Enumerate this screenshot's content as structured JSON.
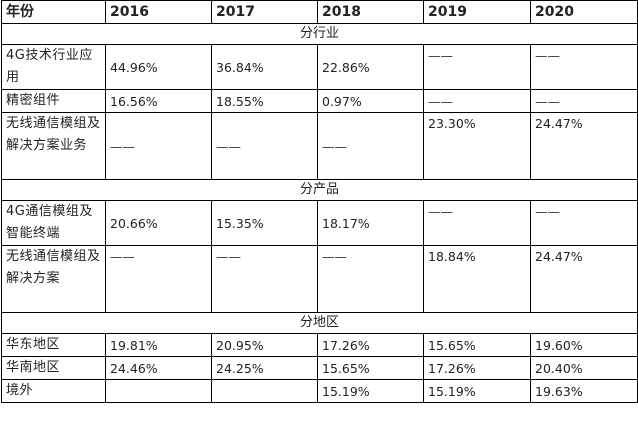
{
  "header": [
    "年份",
    "2016",
    "2017",
    "2018",
    "2019",
    "2020"
  ],
  "sections": [
    {
      "title": "分行业",
      "rows": [
        {
          "label": "4G技术行业应用",
          "values": [
            "44.96%",
            "36.84%",
            "22.86%",
            "——",
            "——"
          ]
        },
        {
          "label": "精密组件",
          "values": [
            "16.56%",
            "18.55%",
            "0.97%",
            "——",
            "——"
          ]
        },
        {
          "label": "无线通信模组及解决方案业务",
          "values": [
            "——",
            "——",
            "——",
            "23.30%",
            "24.47%"
          ]
        }
      ]
    },
    {
      "title": "分产品",
      "rows": [
        {
          "label": "4G通信模组及智能终端",
          "values": [
            "20.66%",
            "15.35%",
            "18.17%",
            "——",
            "——"
          ]
        },
        {
          "label": "无线通信模组及 解决方案",
          "values": [
            "——",
            "——",
            "——",
            "18.84%",
            "24.47%"
          ]
        }
      ]
    },
    {
      "title": "分地区",
      "rows": [
        {
          "label": "华东地区",
          "values": [
            "19.81%",
            "20.95%",
            "17.26%",
            "15.65%",
            "19.60%"
          ]
        },
        {
          "label": "华南地区",
          "values": [
            "24.46%",
            "24.25%",
            "15.65%",
            "17.26%",
            "20.40%"
          ]
        },
        {
          "label": "境外",
          "values": [
            "",
            "",
            "15.19%",
            "15.19%",
            "19.63%"
          ]
        }
      ]
    }
  ]
}
